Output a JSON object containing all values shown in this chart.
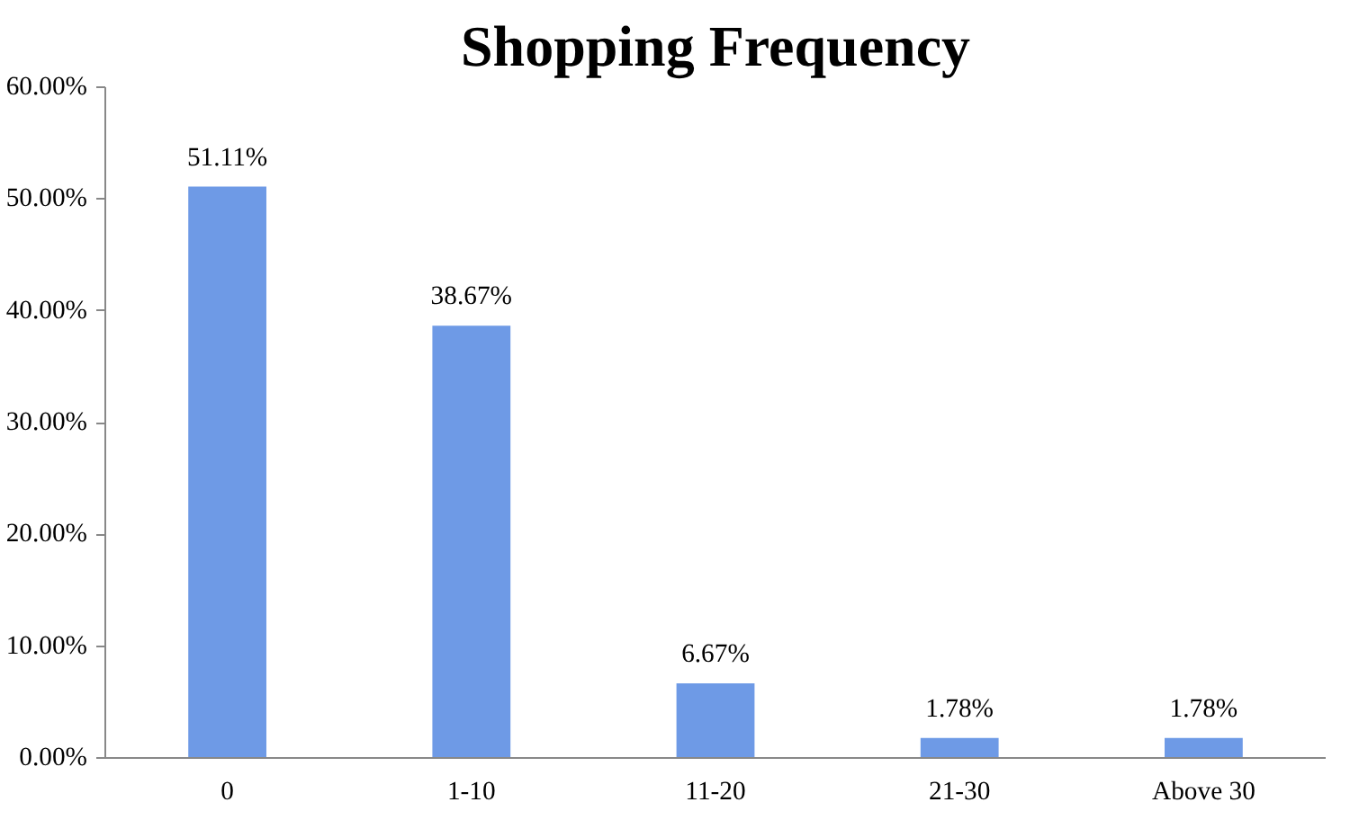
{
  "chart_data": {
    "type": "bar",
    "title": "Shopping Frequency",
    "categories": [
      "0",
      "1-10",
      "11-20",
      "21-30",
      "Above 30"
    ],
    "values": [
      51.11,
      38.67,
      6.67,
      1.78,
      1.78
    ],
    "value_labels": [
      "51.11%",
      "38.67%",
      "6.67%",
      "1.78%",
      "1.78%"
    ],
    "color": "#6e9ae6",
    "ylim": [
      0,
      60
    ],
    "yticks": [
      {
        "value": 0,
        "label": "0.00%"
      },
      {
        "value": 10,
        "label": "10.00%"
      },
      {
        "value": 20,
        "label": "20.00%"
      },
      {
        "value": 30,
        "label": "30.00%"
      },
      {
        "value": 40,
        "label": "40.00%"
      },
      {
        "value": 50,
        "label": "50.00%"
      },
      {
        "value": 60,
        "label": "60.00%"
      }
    ],
    "grid": false
  }
}
